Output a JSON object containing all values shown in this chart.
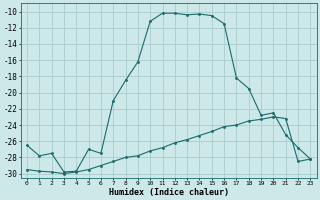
{
  "xlabel": "Humidex (Indice chaleur)",
  "background_color": "#cce8e8",
  "grid_color": "#aacccc",
  "line_color": "#1a6b6b",
  "xlim": [
    -0.5,
    23.5
  ],
  "ylim": [
    -30.5,
    -9.0
  ],
  "yticks": [
    -10,
    -12,
    -14,
    -16,
    -18,
    -20,
    -22,
    -24,
    -26,
    -28,
    -30
  ],
  "xticks": [
    0,
    1,
    2,
    3,
    4,
    5,
    6,
    7,
    8,
    9,
    10,
    11,
    12,
    13,
    14,
    15,
    16,
    17,
    18,
    19,
    20,
    21,
    22,
    23
  ],
  "curve1_x": [
    0,
    1,
    2,
    3,
    4,
    5,
    6,
    7,
    8,
    9,
    10,
    11,
    12,
    13,
    14,
    15,
    16,
    17,
    18,
    19,
    20,
    21,
    22,
    23
  ],
  "curve1_y": [
    -26.5,
    -27.8,
    -27.5,
    -29.8,
    -29.7,
    -27.0,
    -27.5,
    -21.0,
    -18.5,
    -16.2,
    -11.2,
    -10.2,
    -10.2,
    -10.4,
    -10.3,
    -10.5,
    -11.5,
    -18.2,
    -19.5,
    -22.8,
    -22.5,
    -25.2,
    -26.8,
    -28.2
  ],
  "curve2_x": [
    0,
    1,
    2,
    3,
    4,
    5,
    6,
    7,
    8,
    9,
    10,
    11,
    12,
    13,
    14,
    15,
    16,
    17,
    18,
    19,
    20,
    21,
    22,
    23
  ],
  "curve2_y": [
    -29.5,
    -29.7,
    -29.8,
    -30.0,
    -29.8,
    -29.5,
    -29.0,
    -28.5,
    -28.0,
    -27.8,
    -27.2,
    -26.8,
    -26.2,
    -25.8,
    -25.3,
    -24.8,
    -24.2,
    -24.0,
    -23.5,
    -23.3,
    -23.0,
    -23.2,
    -28.5,
    -28.2
  ]
}
